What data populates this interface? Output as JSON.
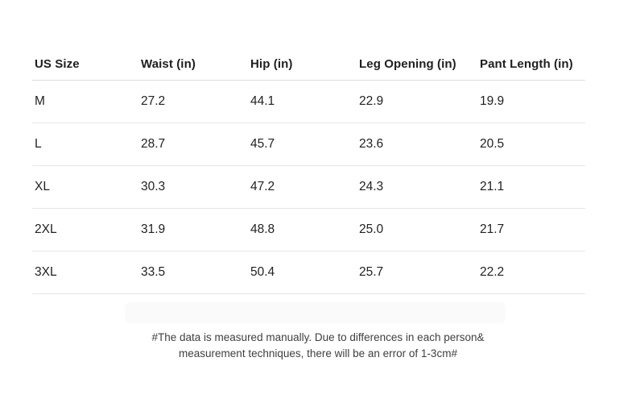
{
  "size_chart": {
    "header": {
      "us_size": "US Size",
      "waist": "Waist (in)",
      "hip": "Hip (in)",
      "leg_opening": "Leg Opening (in)",
      "pant_length": "Pant Length (in)"
    },
    "rows": [
      {
        "size": "M",
        "waist": "27.2",
        "hip": "44.1",
        "leg_opening": "22.9",
        "pant_length": "19.9"
      },
      {
        "size": "L",
        "waist": "28.7",
        "hip": "45.7",
        "leg_opening": "23.6",
        "pant_length": "20.5"
      },
      {
        "size": "XL",
        "waist": "30.3",
        "hip": "47.2",
        "leg_opening": "24.3",
        "pant_length": "21.1"
      },
      {
        "size": "2XL",
        "waist": "31.9",
        "hip": "48.8",
        "leg_opening": "25.0",
        "pant_length": "21.7"
      },
      {
        "size": "3XL",
        "waist": "33.5",
        "hip": "50.4",
        "leg_opening": "25.7",
        "pant_length": "22.2"
      }
    ],
    "note": {
      "line1": "#The data is measured manually. Due to differences in each person&",
      "line2": "measurement techniques, there will be an error of 1-3cm#"
    }
  },
  "colors": {
    "background": "#ffffff",
    "text_primary": "#1f1f1f",
    "text_data": "#222222",
    "header_divider": "#dcdcdc",
    "row_divider": "#e7e7e7",
    "note_text": "#3f3f3f",
    "highlight_bar": "#fafafa"
  }
}
